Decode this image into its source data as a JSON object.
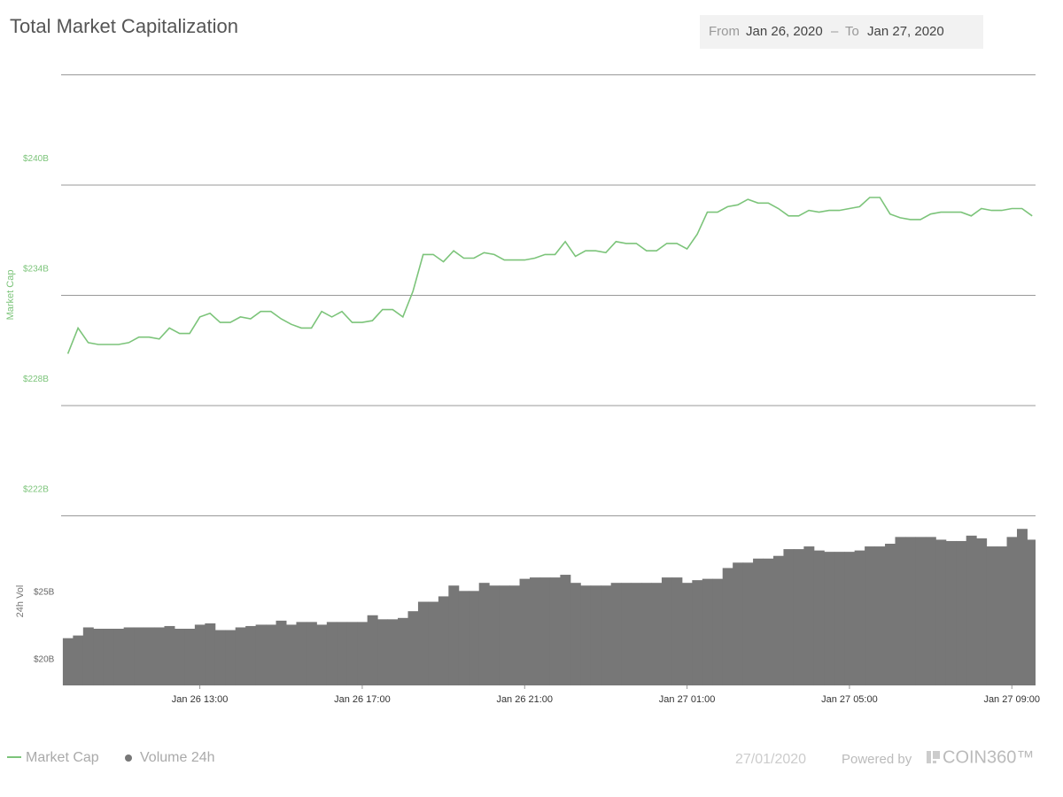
{
  "header": {
    "title": "Total Market Capitalization",
    "date_range": {
      "from_label": "From",
      "from": "Jan 26, 2020",
      "sep": "–",
      "to_label": "To",
      "to": "Jan 27, 2020"
    }
  },
  "chart_data": [
    {
      "type": "line",
      "y_label": "Market Cap",
      "x": [
        "Jan 26 09:45",
        "Jan 26 10:00",
        "Jan 26 10:15",
        "Jan 26 10:30",
        "Jan 26 10:45",
        "Jan 26 11:00",
        "Jan 26 11:15",
        "Jan 26 11:30",
        "Jan 26 11:45",
        "Jan 26 12:00",
        "Jan 26 12:15",
        "Jan 26 12:30",
        "Jan 26 12:45",
        "Jan 26 13:00",
        "Jan 26 13:15",
        "Jan 26 13:30",
        "Jan 26 13:45",
        "Jan 26 14:00",
        "Jan 26 14:15",
        "Jan 26 14:30",
        "Jan 26 14:45",
        "Jan 26 15:00",
        "Jan 26 15:15",
        "Jan 26 15:30",
        "Jan 26 15:45",
        "Jan 26 16:00",
        "Jan 26 16:15",
        "Jan 26 16:30",
        "Jan 26 16:45",
        "Jan 26 17:00",
        "Jan 26 17:15",
        "Jan 26 17:30",
        "Jan 26 17:45",
        "Jan 26 18:00",
        "Jan 26 18:15",
        "Jan 26 18:30",
        "Jan 26 18:45",
        "Jan 26 19:00",
        "Jan 26 19:15",
        "Jan 26 19:30",
        "Jan 26 19:45",
        "Jan 26 20:00",
        "Jan 26 20:15",
        "Jan 26 20:30",
        "Jan 26 20:45",
        "Jan 26 21:00",
        "Jan 26 21:15",
        "Jan 26 21:30",
        "Jan 26 21:45",
        "Jan 26 22:00",
        "Jan 26 22:15",
        "Jan 26 22:30",
        "Jan 26 22:45",
        "Jan 26 23:00",
        "Jan 26 23:15",
        "Jan 26 23:30",
        "Jan 26 23:45",
        "Jan 27 00:00",
        "Jan 27 00:15",
        "Jan 27 00:30",
        "Jan 27 00:45",
        "Jan 27 01:00",
        "Jan 27 01:15",
        "Jan 27 01:30",
        "Jan 27 01:45",
        "Jan 27 02:00",
        "Jan 27 02:15",
        "Jan 27 02:30",
        "Jan 27 02:45",
        "Jan 27 03:00",
        "Jan 27 03:15",
        "Jan 27 03:30",
        "Jan 27 03:45",
        "Jan 27 04:00",
        "Jan 27 04:15",
        "Jan 27 04:30",
        "Jan 27 04:45",
        "Jan 27 05:00",
        "Jan 27 05:15",
        "Jan 27 05:30",
        "Jan 27 05:45",
        "Jan 27 06:00",
        "Jan 27 06:15",
        "Jan 27 06:30",
        "Jan 27 06:45",
        "Jan 27 07:00",
        "Jan 27 07:15",
        "Jan 27 07:30",
        "Jan 27 07:45",
        "Jan 27 08:00",
        "Jan 27 08:15",
        "Jan 27 08:30",
        "Jan 27 08:45",
        "Jan 27 09:00",
        "Jan 27 09:15",
        "Jan 27 09:30"
      ],
      "series": [
        {
          "name": "Market Cap",
          "color": "#7cc47a",
          "values": [
            230.8,
            232.2,
            231.4,
            231.3,
            231.3,
            231.3,
            231.4,
            231.7,
            231.7,
            231.6,
            232.2,
            231.9,
            231.9,
            232.8,
            233.0,
            232.5,
            232.5,
            232.8,
            232.7,
            233.1,
            233.1,
            232.7,
            232.4,
            232.2,
            232.2,
            233.1,
            232.8,
            233.1,
            232.5,
            232.5,
            232.6,
            233.2,
            233.2,
            232.8,
            234.2,
            236.2,
            236.2,
            235.8,
            236.4,
            236.0,
            236.0,
            236.3,
            236.2,
            235.9,
            235.9,
            235.9,
            236.0,
            236.2,
            236.2,
            236.9,
            236.1,
            236.4,
            236.4,
            236.3,
            236.9,
            236.8,
            236.8,
            236.4,
            236.4,
            236.8,
            236.8,
            236.5,
            237.3,
            238.5,
            238.5,
            238.8,
            238.9,
            239.2,
            239.0,
            239.0,
            238.7,
            238.3,
            238.3,
            238.6,
            238.5,
            238.6,
            238.6,
            238.7,
            238.8,
            239.3,
            239.3,
            238.4,
            238.2,
            238.1,
            238.1,
            238.4,
            238.5,
            238.5,
            238.5,
            238.3,
            238.7,
            238.6,
            238.6,
            238.7,
            238.7,
            238.3
          ]
        }
      ],
      "xlim": [
        "Jan 26 09:35",
        "Jan 27 09:35"
      ],
      "ylim": [
        222,
        246
      ],
      "yticks": [
        {
          "value": 222,
          "label": "$222B"
        },
        {
          "value": 228,
          "label": "$228B"
        },
        {
          "value": 234,
          "label": "$234B"
        },
        {
          "value": 240,
          "label": "$240B"
        }
      ],
      "grid": true
    },
    {
      "type": "bar",
      "y_label": "24h Vol",
      "x": [
        "Jan 26 09:45",
        "Jan 26 10:00",
        "Jan 26 10:15",
        "Jan 26 10:30",
        "Jan 26 10:45",
        "Jan 26 11:00",
        "Jan 26 11:15",
        "Jan 26 11:30",
        "Jan 26 11:45",
        "Jan 26 12:00",
        "Jan 26 12:15",
        "Jan 26 12:30",
        "Jan 26 12:45",
        "Jan 26 13:00",
        "Jan 26 13:15",
        "Jan 26 13:30",
        "Jan 26 13:45",
        "Jan 26 14:00",
        "Jan 26 14:15",
        "Jan 26 14:30",
        "Jan 26 14:45",
        "Jan 26 15:00",
        "Jan 26 15:15",
        "Jan 26 15:30",
        "Jan 26 15:45",
        "Jan 26 16:00",
        "Jan 26 16:15",
        "Jan 26 16:30",
        "Jan 26 16:45",
        "Jan 26 17:00",
        "Jan 26 17:15",
        "Jan 26 17:30",
        "Jan 26 17:45",
        "Jan 26 18:00",
        "Jan 26 18:15",
        "Jan 26 18:30",
        "Jan 26 18:45",
        "Jan 26 19:00",
        "Jan 26 19:15",
        "Jan 26 19:30",
        "Jan 26 19:45",
        "Jan 26 20:00",
        "Jan 26 20:15",
        "Jan 26 20:30",
        "Jan 26 20:45",
        "Jan 26 21:00",
        "Jan 26 21:15",
        "Jan 26 21:30",
        "Jan 26 21:45",
        "Jan 26 22:00",
        "Jan 26 22:15",
        "Jan 26 22:30",
        "Jan 26 22:45",
        "Jan 26 23:00",
        "Jan 26 23:15",
        "Jan 26 23:30",
        "Jan 26 23:45",
        "Jan 27 00:00",
        "Jan 27 00:15",
        "Jan 27 00:30",
        "Jan 27 00:45",
        "Jan 27 01:00",
        "Jan 27 01:15",
        "Jan 27 01:30",
        "Jan 27 01:45",
        "Jan 27 02:00",
        "Jan 27 02:15",
        "Jan 27 02:30",
        "Jan 27 02:45",
        "Jan 27 03:00",
        "Jan 27 03:15",
        "Jan 27 03:30",
        "Jan 27 03:45",
        "Jan 27 04:00",
        "Jan 27 04:15",
        "Jan 27 04:30",
        "Jan 27 04:45",
        "Jan 27 05:00",
        "Jan 27 05:15",
        "Jan 27 05:30",
        "Jan 27 05:45",
        "Jan 27 06:00",
        "Jan 27 06:15",
        "Jan 27 06:30",
        "Jan 27 06:45",
        "Jan 27 07:00",
        "Jan 27 07:15",
        "Jan 27 07:30",
        "Jan 27 07:45",
        "Jan 27 08:00",
        "Jan 27 08:15",
        "Jan 27 08:30",
        "Jan 27 08:45",
        "Jan 27 09:00",
        "Jan 27 09:15",
        "Jan 27 09:30"
      ],
      "series": [
        {
          "name": "Volume 24h",
          "color": "#777777",
          "values": [
            21.6,
            21.8,
            22.4,
            22.3,
            22.3,
            22.3,
            22.4,
            22.4,
            22.4,
            22.4,
            22.5,
            22.3,
            22.3,
            22.6,
            22.7,
            22.2,
            22.2,
            22.4,
            22.5,
            22.6,
            22.6,
            22.9,
            22.6,
            22.8,
            22.8,
            22.6,
            22.8,
            22.8,
            22.8,
            22.8,
            23.3,
            23.0,
            23.0,
            23.1,
            23.6,
            24.3,
            24.3,
            24.7,
            25.5,
            25.1,
            25.1,
            25.7,
            25.5,
            25.5,
            25.5,
            26.0,
            26.1,
            26.1,
            26.1,
            26.3,
            25.7,
            25.5,
            25.5,
            25.5,
            25.7,
            25.7,
            25.7,
            25.7,
            25.7,
            26.1,
            26.1,
            25.7,
            25.9,
            26.0,
            26.0,
            26.8,
            27.2,
            27.2,
            27.5,
            27.5,
            27.7,
            28.2,
            28.2,
            28.4,
            28.1,
            28.0,
            28.0,
            28.0,
            28.1,
            28.4,
            28.4,
            28.6,
            29.1,
            29.1,
            29.1,
            29.1,
            28.9,
            28.8,
            28.8,
            29.2,
            29.0,
            28.4,
            28.4,
            29.1,
            29.7,
            28.9
          ]
        }
      ],
      "xlim": [
        "Jan 26 09:35",
        "Jan 27 09:35"
      ],
      "xticks": [
        "Jan 26 13:00",
        "Jan 26 17:00",
        "Jan 26 21:00",
        "Jan 27 01:00",
        "Jan 27 05:00",
        "Jan 27 09:00"
      ],
      "ylim": [
        18.1,
        30.7
      ],
      "yticks": [
        {
          "value": 20,
          "label": "$20B"
        },
        {
          "value": 25,
          "label": "$25B"
        }
      ]
    }
  ],
  "footer": {
    "date": "27/01/2020",
    "powered": "Powered by",
    "brand": "COIN360™"
  }
}
